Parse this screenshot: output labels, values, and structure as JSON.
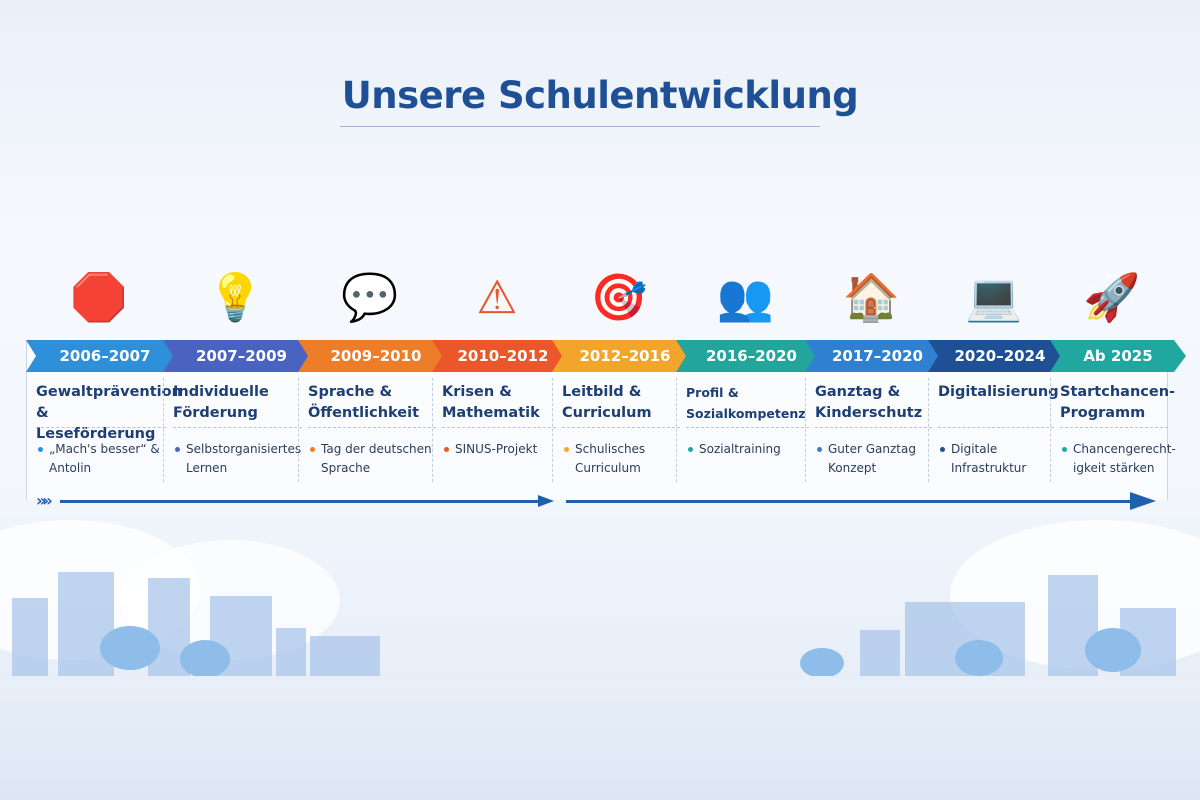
{
  "title": "Unsere Schulentwicklung",
  "phases": [
    {
      "period": "2006–2007",
      "heading": "Gewaltprävention & Leseförderung",
      "item": "„Mach's besser“ & Antolin",
      "color": "#2f8fd8",
      "icon": "stop-hands-icon"
    },
    {
      "period": "2007–2009",
      "heading": "Individuelle Förderung",
      "item": "Selbstorganisiertes Lernen",
      "color": "#4b63c0",
      "icon": "lightbulb-puzzle-icon"
    },
    {
      "period": "2009–2010",
      "heading": "Sprache & Öffentlichkeit",
      "item": "Tag der deutschen Sprache",
      "color": "#ee7d2a",
      "icon": "speech-bubbles-icon"
    },
    {
      "period": "2010–2012",
      "heading": "Krisen & Mathematik",
      "item": "SINUS-Projekt",
      "color": "#e9572a",
      "icon": "warning-calculator-icon"
    },
    {
      "period": "2012–2016",
      "heading": "Leitbild & Curriculum",
      "item": "Schulisches Curriculum",
      "color": "#f2a52a",
      "icon": "target-checklist-icon"
    },
    {
      "period": "2016–2020",
      "heading": "Profil & Sozialkompetenz",
      "item": "Sozialtraining",
      "color": "#23a59c",
      "icon": "people-group-icon"
    },
    {
      "period": "2017–2020",
      "heading": "Ganztag & Kinderschutz",
      "item": "Guter Ganztag Konzept",
      "color": "#2f80d0",
      "icon": "house-shield-icon"
    },
    {
      "period": "2020–2024",
      "heading": "Digitalisierung",
      "item": "Digitale Infrastruktur",
      "color": "#1f4f95",
      "icon": "laptop-wifi-icon"
    },
    {
      "period": "Ab 2025",
      "heading": "Startchancen-Programm",
      "item": "Chancengerecht-igkeit stärken",
      "color": "#20a8a0",
      "icon": "rocket-stars-icon"
    }
  ]
}
